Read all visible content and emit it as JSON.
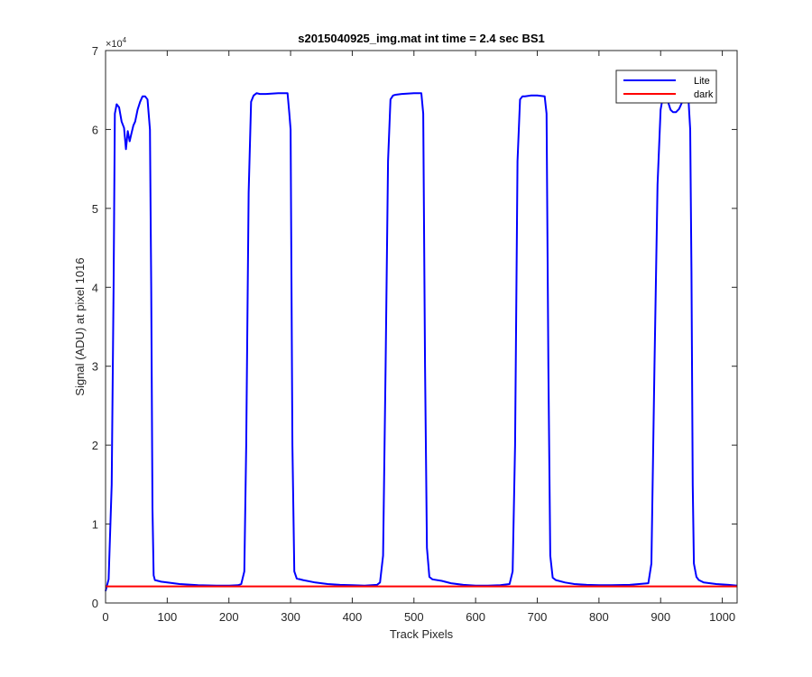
{
  "chart_data": {
    "type": "line",
    "title": "s2015040925_img.mat int time = 2.4 sec   BS1",
    "xlabel": "Track Pixels",
    "ylabel": "Signal (ADU) at pixel 1016",
    "xlim": [
      0,
      1024
    ],
    "ylim": [
      0,
      70000
    ],
    "xticks": [
      0,
      100,
      200,
      300,
      400,
      500,
      600,
      700,
      800,
      900,
      1000
    ],
    "yticks": [
      0,
      1,
      2,
      3,
      4,
      5,
      6,
      7
    ],
    "y_exponent_label": "×10",
    "y_exponent_power": "4",
    "y_scale_factor": 10000,
    "grid": false,
    "legend_position": "top-right",
    "colors": {
      "lite": "#0000ff",
      "dark": "#ff0000",
      "axis": "#262626"
    },
    "series": [
      {
        "name": "Lite",
        "x": [
          0,
          5,
          10,
          13,
          15,
          18,
          22,
          26,
          30,
          33,
          36,
          39,
          42,
          45,
          48,
          52,
          56,
          60,
          64,
          68,
          72,
          74,
          76,
          78,
          80,
          85,
          90,
          100,
          120,
          150,
          180,
          200,
          215,
          220,
          225,
          228,
          232,
          236,
          240,
          245,
          250,
          260,
          280,
          295,
          298,
          300,
          303,
          306,
          310,
          320,
          340,
          360,
          380,
          400,
          420,
          440,
          445,
          450,
          454,
          458,
          462,
          466,
          470,
          480,
          500,
          512,
          515,
          518,
          521,
          525,
          530,
          545,
          560,
          580,
          600,
          620,
          640,
          655,
          660,
          664,
          668,
          672,
          676,
          680,
          690,
          700,
          712,
          715,
          718,
          721,
          725,
          730,
          745,
          760,
          780,
          800,
          820,
          850,
          880,
          885,
          890,
          895,
          900,
          904,
          908,
          912,
          916,
          920,
          925,
          930,
          935,
          940,
          945,
          948,
          950,
          952,
          954,
          958,
          962,
          970,
          990,
          1010,
          1024
        ],
        "y": [
          1500,
          3000,
          15000,
          40000,
          62000,
          63200,
          62800,
          61000,
          60200,
          57500,
          59800,
          58500,
          59500,
          60500,
          61000,
          62500,
          63500,
          64200,
          64200,
          63800,
          60000,
          40000,
          12000,
          3500,
          2900,
          2800,
          2700,
          2600,
          2400,
          2250,
          2200,
          2200,
          2250,
          2400,
          4000,
          20000,
          52000,
          63500,
          64300,
          64600,
          64500,
          64500,
          64600,
          64600,
          62000,
          60000,
          20000,
          4000,
          3100,
          2900,
          2600,
          2400,
          2300,
          2250,
          2200,
          2300,
          2600,
          6000,
          30000,
          56000,
          63800,
          64300,
          64400,
          64500,
          64600,
          64600,
          62000,
          30000,
          7000,
          3300,
          3000,
          2800,
          2500,
          2300,
          2200,
          2200,
          2250,
          2400,
          4000,
          20000,
          56000,
          63800,
          64200,
          64200,
          64300,
          64300,
          64200,
          62000,
          30000,
          6000,
          3200,
          2900,
          2600,
          2400,
          2300,
          2250,
          2250,
          2300,
          2500,
          5000,
          30000,
          53000,
          62500,
          64300,
          64500,
          63500,
          62500,
          62200,
          62200,
          62600,
          63500,
          64000,
          64000,
          60000,
          42000,
          15000,
          5000,
          3300,
          2900,
          2600,
          2400,
          2300,
          2200
        ]
      },
      {
        "name": "dark",
        "x": [
          0,
          1024
        ],
        "y": [
          2100,
          2100
        ]
      }
    ]
  }
}
